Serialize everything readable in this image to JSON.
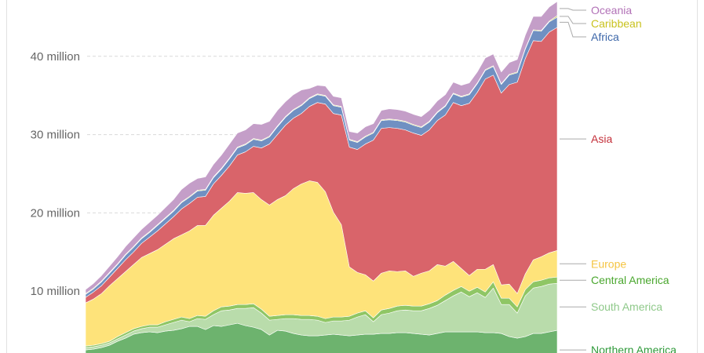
{
  "chart_data": {
    "type": "area",
    "stacked": true,
    "ylim": [
      0,
      47000000
    ],
    "y_ticks": [
      {
        "value": 10000000,
        "label": "10 million"
      },
      {
        "value": 20000000,
        "label": "20 million"
      },
      {
        "value": 30000000,
        "label": "30 million"
      },
      {
        "value": 40000000,
        "label": "40 million"
      }
    ],
    "grid": true,
    "legend_placement": "right",
    "x_points": 60,
    "series": [
      {
        "name": "Northern America",
        "color": "#6db36e",
        "values": [
          2.5,
          2.6,
          2.8,
          3.1,
          3.6,
          4.0,
          4.5,
          4.7,
          4.8,
          4.7,
          4.9,
          5.0,
          5.2,
          5.5,
          5.5,
          5.1,
          5.6,
          5.5,
          5.7,
          5.9,
          5.6,
          5.4,
          5.1,
          4.4,
          5.0,
          4.9,
          4.6,
          4.4,
          4.3,
          4.3,
          4.4,
          4.5,
          4.4,
          4.3,
          4.4,
          4.5,
          4.5,
          4.6,
          4.6,
          4.7,
          4.7,
          4.6,
          4.5,
          4.4,
          4.6,
          4.8,
          4.8,
          4.8,
          4.8,
          4.8,
          4.7,
          4.7,
          4.6,
          4.2,
          4.0,
          4.2,
          4.6,
          4.6,
          4.8,
          5.0
        ]
      },
      {
        "name": "South America",
        "color": "#b9dcab",
        "values": [
          0.3,
          0.3,
          0.3,
          0.3,
          0.3,
          0.4,
          0.4,
          0.5,
          0.6,
          0.7,
          0.8,
          1.0,
          1.1,
          0.6,
          1.0,
          1.3,
          1.4,
          2.0,
          1.9,
          1.9,
          2.2,
          2.5,
          2.1,
          1.9,
          1.4,
          1.6,
          1.9,
          2.0,
          2.1,
          2.0,
          1.6,
          1.7,
          1.8,
          2.0,
          2.3,
          2.5,
          1.6,
          2.4,
          2.6,
          2.8,
          2.9,
          2.9,
          3.0,
          3.4,
          3.6,
          4.0,
          4.6,
          5.1,
          4.5,
          5.0,
          4.5,
          5.7,
          3.7,
          4.1,
          3.2,
          5.2,
          5.8,
          6.0,
          6.1,
          6.0
        ]
      },
      {
        "name": "Central America",
        "color": "#8fc665",
        "values": [
          0.2,
          0.2,
          0.2,
          0.2,
          0.3,
          0.3,
          0.3,
          0.3,
          0.3,
          0.3,
          0.4,
          0.4,
          0.4,
          0.4,
          0.4,
          0.4,
          0.5,
          0.5,
          0.5,
          0.5,
          0.5,
          0.5,
          0.5,
          0.5,
          0.5,
          0.5,
          0.5,
          0.5,
          0.5,
          0.5,
          0.5,
          0.5,
          0.5,
          0.5,
          0.5,
          0.5,
          0.5,
          0.6,
          0.6,
          0.6,
          0.6,
          0.6,
          0.6,
          0.6,
          0.6,
          0.7,
          0.7,
          0.7,
          0.7,
          0.7,
          0.7,
          0.8,
          0.8,
          0.8,
          0.8,
          0.8,
          0.8,
          0.8,
          0.8,
          0.8
        ]
      },
      {
        "name": "Europe",
        "color": "#fee37a",
        "values": [
          5.5,
          5.9,
          6.4,
          7.1,
          7.4,
          7.8,
          8.2,
          8.8,
          9.1,
          9.6,
          9.9,
          10.3,
          10.5,
          11.2,
          11.5,
          11.6,
          12.2,
          12.6,
          13.4,
          14.3,
          14.2,
          14.2,
          14.0,
          14.2,
          14.8,
          15.2,
          16.1,
          16.8,
          17.2,
          17.1,
          16.2,
          13.4,
          11.8,
          6.3,
          5.2,
          4.6,
          4.7,
          4.7,
          4.8,
          4.4,
          4.4,
          3.8,
          4.2,
          4.2,
          4.6,
          3.7,
          3.7,
          2.3,
          2.0,
          2.3,
          2.9,
          2.2,
          1.7,
          1.8,
          1.7,
          2.0,
          2.8,
          3.0,
          3.2,
          3.4
        ]
      },
      {
        "name": "Asia",
        "color": "#d9646a",
        "values": [
          0.7,
          0.9,
          1.0,
          1.1,
          1.3,
          1.5,
          1.6,
          1.8,
          2.1,
          2.4,
          2.6,
          2.8,
          3.3,
          3.5,
          3.6,
          3.7,
          4.0,
          4.2,
          4.5,
          4.8,
          5.3,
          5.9,
          6.6,
          7.8,
          8.3,
          9.0,
          9.0,
          9.0,
          9.5,
          10.2,
          11.2,
          12.6,
          14.0,
          15.3,
          15.7,
          16.7,
          18.0,
          18.5,
          18.3,
          18.3,
          18.0,
          18.3,
          17.6,
          18.0,
          18.4,
          19.3,
          20.3,
          20.8,
          22.0,
          22.6,
          24.3,
          24.2,
          24.5,
          25.5,
          27.0,
          27.5,
          28.0,
          27.5,
          28.2,
          28.5
        ]
      },
      {
        "name": "Africa",
        "color": "#7090c2",
        "values": [
          0.4,
          0.4,
          0.5,
          0.5,
          0.5,
          0.6,
          0.6,
          0.6,
          0.6,
          0.7,
          0.7,
          0.7,
          0.8,
          0.8,
          0.8,
          0.8,
          0.8,
          0.8,
          0.9,
          0.9,
          0.9,
          0.9,
          0.9,
          0.9,
          1.0,
          1.0,
          1.0,
          1.0,
          1.0,
          1.0,
          1.0,
          1.0,
          1.0,
          0.9,
          0.9,
          0.9,
          0.9,
          1.0,
          1.0,
          1.0,
          1.0,
          1.0,
          1.0,
          1.0,
          1.0,
          1.1,
          1.1,
          1.1,
          1.1,
          1.1,
          1.1,
          1.1,
          1.1,
          1.2,
          1.2,
          1.2,
          1.3,
          1.3,
          1.3,
          1.3
        ]
      },
      {
        "name": "Caribbean",
        "color": "#c8c85a",
        "values": [
          0.1,
          0.1,
          0.1,
          0.1,
          0.1,
          0.1,
          0.1,
          0.1,
          0.1,
          0.1,
          0.1,
          0.1,
          0.1,
          0.1,
          0.1,
          0.1,
          0.1,
          0.1,
          0.1,
          0.1,
          0.1,
          0.1,
          0.1,
          0.1,
          0.1,
          0.1,
          0.1,
          0.1,
          0.1,
          0.1,
          0.1,
          0.1,
          0.1,
          0.1,
          0.1,
          0.1,
          0.1,
          0.1,
          0.1,
          0.1,
          0.1,
          0.1,
          0.1,
          0.1,
          0.1,
          0.1,
          0.1,
          0.1,
          0.1,
          0.1,
          0.1,
          0.1,
          0.1,
          0.1,
          0.1,
          0.1,
          0.1,
          0.1,
          0.1,
          0.2
        ]
      },
      {
        "name": "Oceania",
        "color": "#c49ec8",
        "values": [
          0.5,
          0.6,
          0.7,
          0.8,
          0.9,
          1.0,
          1.1,
          1.1,
          1.2,
          1.2,
          1.3,
          1.4,
          1.6,
          1.7,
          1.5,
          1.6,
          1.6,
          1.7,
          1.8,
          1.8,
          1.8,
          1.9,
          2.0,
          1.9,
          2.0,
          1.9,
          1.9,
          1.9,
          1.2,
          1.1,
          1.2,
          1.1,
          1.1,
          1.0,
          1.1,
          1.2,
          1.1,
          1.2,
          1.3,
          1.3,
          1.3,
          1.3,
          1.3,
          1.4,
          1.4,
          1.4,
          1.4,
          1.4,
          1.4,
          1.4,
          1.5,
          1.5,
          1.5,
          1.5,
          1.6,
          1.7,
          1.7,
          1.8,
          1.8,
          1.8
        ]
      }
    ]
  },
  "colors": {
    "grid": "#d9d9d9",
    "tick_text": "#666666",
    "leader": "#aaaaaa",
    "Oceania": "#b272b7",
    "Caribbean": "#c9c21e",
    "Africa": "#3d67a9",
    "Asia": "#c4303a",
    "Europe": "#f5c543",
    "Central America": "#4aa72e",
    "South America": "#8fc98a",
    "Northern America": "#2f9a3a"
  }
}
